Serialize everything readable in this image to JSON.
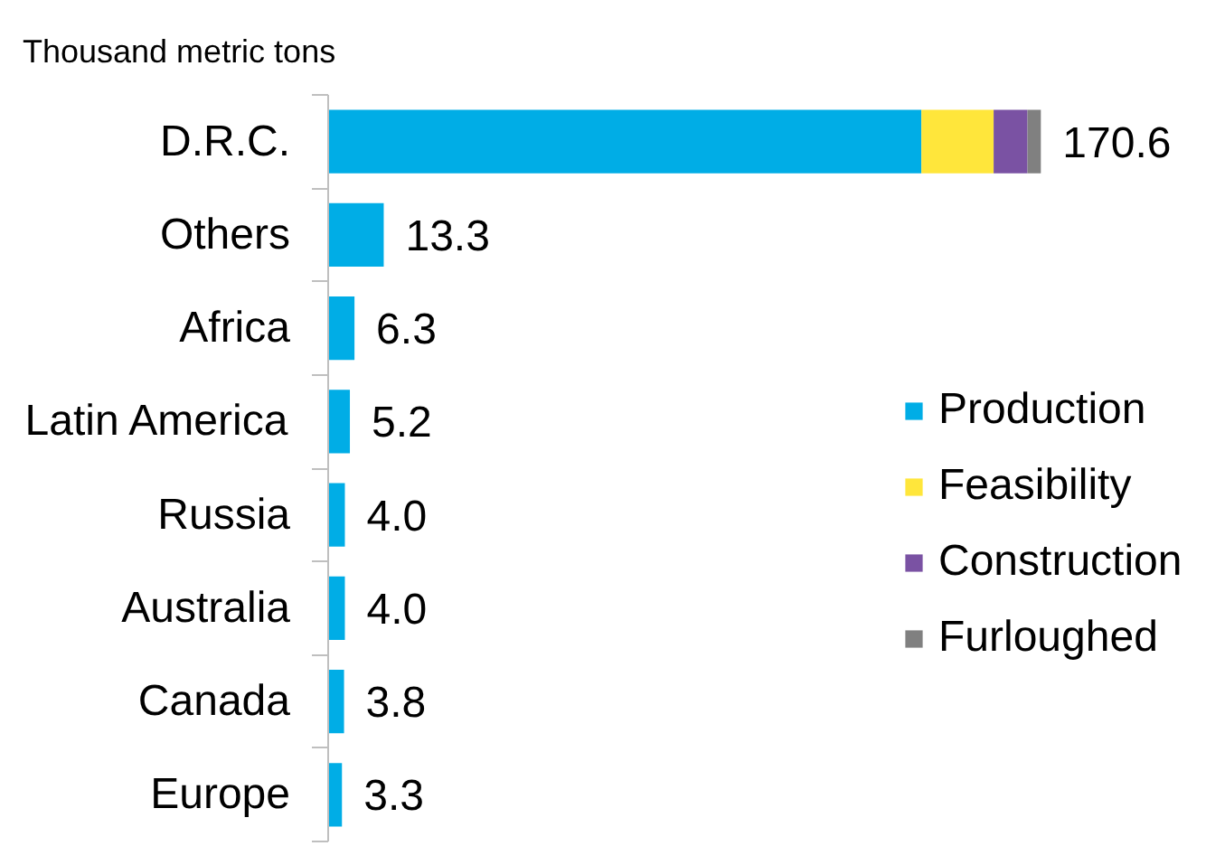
{
  "chart_data": {
    "type": "bar",
    "orientation": "horizontal",
    "stacked": true,
    "title": "Thousand metric tons",
    "categories": [
      "D.R.C.",
      "Others",
      "Africa",
      "Latin America",
      "Russia",
      "Australia",
      "Canada",
      "Europe"
    ],
    "series": [
      {
        "name": "Production",
        "color": "#00ade6",
        "values": [
          142.0,
          13.3,
          6.3,
          5.2,
          4.0,
          4.0,
          3.8,
          3.3
        ],
        "value_labels": [
          null,
          "13.3",
          "6.3",
          "5.2",
          "4.0",
          "4.0",
          "3.8",
          "3.3"
        ]
      },
      {
        "name": "Feasibility",
        "color": "#ffe63b",
        "values": [
          17.3,
          null,
          null,
          null,
          null,
          null,
          null,
          null
        ]
      },
      {
        "name": "Construction",
        "color": "#7a52a3",
        "values": [
          8.1,
          null,
          null,
          null,
          null,
          null,
          null,
          null
        ]
      },
      {
        "name": "Furloughed",
        "color": "#808080",
        "values": [
          3.2,
          null,
          null,
          null,
          null,
          null,
          null,
          null
        ]
      }
    ],
    "totals": [
      "170.6",
      null,
      null,
      null,
      null,
      null,
      null,
      null
    ],
    "legend": "right"
  }
}
